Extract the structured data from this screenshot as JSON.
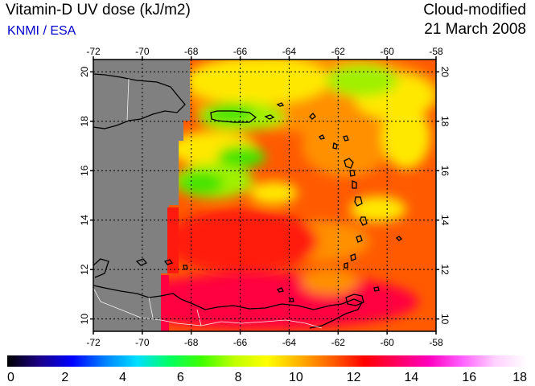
{
  "title": "Vitamin-D UV dose (kJ/m2)",
  "credit": "KNMI / ESA",
  "subtitle": "Cloud-modified",
  "date": "21 March 2008",
  "map": {
    "lon_range": [
      -72,
      -58
    ],
    "lat_range": [
      9.5,
      20.5
    ],
    "lon_ticks": [
      "-72",
      "-70",
      "-68",
      "-66",
      "-64",
      "-62",
      "-60",
      "-58"
    ],
    "lat_ticks": [
      "20",
      "18",
      "16",
      "14",
      "12",
      "10"
    ],
    "grid": true,
    "no_data_color": "#808080",
    "coastline_color": "#000000",
    "border_color": "#ffffff"
  },
  "colorbar": {
    "range": [
      0,
      18
    ],
    "ticks": [
      "0",
      "2",
      "4",
      "6",
      "8",
      "10",
      "12",
      "14",
      "16",
      "18"
    ],
    "colors": [
      "#000000",
      "#1a0088",
      "#0000ff",
      "#0080ff",
      "#00e0ff",
      "#00ff60",
      "#40ff00",
      "#c0ff00",
      "#ffff00",
      "#ffb000",
      "#ff6000",
      "#ff0000",
      "#ff0060",
      "#ff00c0",
      "#ff60ff",
      "#ffd0ff",
      "#ffffff"
    ]
  },
  "palette": {
    "green": "#44e400",
    "light_green": "#a0f000",
    "yellow": "#ffe800",
    "orange": "#ff9000",
    "red_orange": "#ff5a00",
    "red": "#ff1a10",
    "crimson": "#ff0040"
  }
}
